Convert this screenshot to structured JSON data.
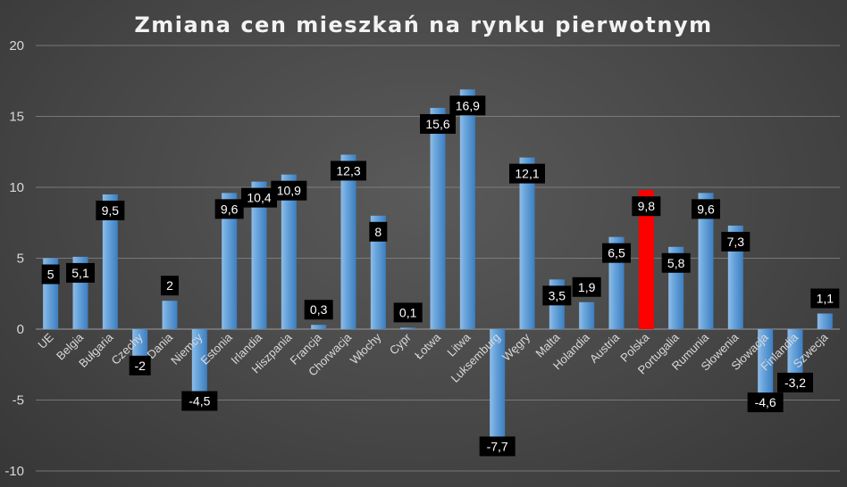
{
  "chart_data": {
    "type": "bar",
    "title": "Zmiana cen mieszkań na rynku pierwotnym",
    "xlabel": "",
    "ylabel": "",
    "ylim": [
      -10,
      20
    ],
    "yticks": [
      -10,
      -5,
      0,
      5,
      10,
      15,
      20
    ],
    "grid": true,
    "legend": "none",
    "categories": [
      "UE",
      "Belgia",
      "Bułgaria",
      "Czechy",
      "Dania",
      "Niemcy",
      "Estonia",
      "Irlandia",
      "Hiszpania",
      "Francja",
      "Chorwacja",
      "Włochy",
      "Cypr",
      "Łotwa",
      "Litwa",
      "Luksemburg",
      "Węgry",
      "Malta",
      "Holandia",
      "Austria",
      "Polska",
      "Portugalia",
      "Rumunia",
      "Słowenia",
      "Słowacja",
      "Finlandia",
      "Szwecja"
    ],
    "values": [
      5,
      5.1,
      9.5,
      -2,
      2,
      -4.5,
      9.6,
      10.4,
      10.9,
      0.3,
      12.3,
      8,
      0.1,
      15.6,
      16.9,
      -7.7,
      12.1,
      3.5,
      1.9,
      6.5,
      9.8,
      5.8,
      9.6,
      7.3,
      -4.6,
      -3.2,
      1.1
    ],
    "data_labels": [
      "5",
      "5,1",
      "9,5",
      "-2",
      "2",
      "-4,5",
      "9,6",
      "10,4",
      "10,9",
      "0,3",
      "12,3",
      "8",
      "0,1",
      "15,6",
      "16,9",
      "-7,7",
      "12,1",
      "3,5",
      "1,9",
      "6,5",
      "9,8",
      "5,8",
      "9,6",
      "7,3",
      "-4,6",
      "-3,2",
      "1,1"
    ],
    "highlight_category": "Polska",
    "colors": {
      "bar": "#5b9bd5",
      "bar_light": "#8fbde8",
      "bar_dark": "#3d7ec0",
      "highlight": "#ff0000",
      "label_bg": "#000000",
      "label_text": "#ffffff",
      "grid": "#8a8a8a",
      "axis_text": "#d9d9d9",
      "title": "#f2f2f2"
    }
  }
}
